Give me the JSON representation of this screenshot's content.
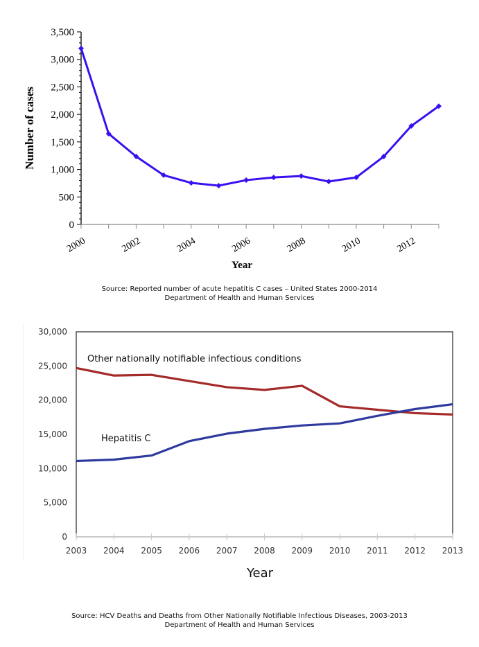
{
  "chart_data": [
    {
      "type": "line",
      "title": "",
      "xlabel": "Year",
      "ylabel": "Number of cases",
      "x": [
        2000,
        2001,
        2002,
        2003,
        2004,
        2005,
        2006,
        2007,
        2008,
        2009,
        2010,
        2011,
        2012,
        2013
      ],
      "xtick_labels": [
        "2000",
        "2002",
        "2004",
        "2006",
        "2008",
        "2010",
        "2012"
      ],
      "ytick_labels": [
        "0",
        "500",
        "1,000",
        "1,500",
        "2,000",
        "2,500",
        "3,000",
        "3,500"
      ],
      "ylim": [
        0,
        3500
      ],
      "xlim": [
        2000,
        2013
      ],
      "grid": false,
      "series": [
        {
          "name": "Acute hepatitis C cases",
          "color": "#3a10f0",
          "marker": "diamond",
          "values": [
            3200,
            1650,
            1235,
            895,
            755,
            705,
            805,
            855,
            880,
            780,
            855,
            1235,
            1790,
            2150
          ]
        }
      ],
      "caption": [
        "Source: Reported number of acute hepatitis C cases – United States 2000-2014",
        "Department of Health and Human Services"
      ]
    },
    {
      "type": "line",
      "title": "",
      "xlabel": "Year",
      "ylabel": "",
      "x": [
        2003,
        2004,
        2005,
        2006,
        2007,
        2008,
        2009,
        2010,
        2011,
        2012,
        2013
      ],
      "xtick_labels": [
        "2003",
        "2004",
        "2005",
        "2006",
        "2007",
        "2008",
        "2009",
        "2010",
        "2011",
        "2012",
        "2013"
      ],
      "ytick_labels": [
        "0",
        "5,000",
        "10,000",
        "15,000",
        "20,000",
        "25,000",
        "30,000"
      ],
      "ylim": [
        0,
        30000
      ],
      "xlim": [
        2003,
        2013
      ],
      "grid": false,
      "series": [
        {
          "name": "Other nationally notifiable infectious conditions",
          "color": "#a52a2a",
          "values": [
            24700,
            23600,
            23700,
            22800,
            21900,
            21500,
            22100,
            19100,
            18600,
            18100,
            17900
          ]
        },
        {
          "name": "Hepatitis C",
          "color": "#2e3a9e",
          "values": [
            11100,
            11300,
            11900,
            14000,
            15100,
            15800,
            16300,
            16600,
            17700,
            18700,
            19400
          ]
        }
      ],
      "annotations": [
        "Other nationally notifiable infectious conditions",
        "Hepatitis C"
      ],
      "caption": [
        "Source: HCV Deaths and Deaths from Other Nationally Notifiable Infectious Diseases, 2003-2013",
        "Department of Health and Human Services"
      ]
    }
  ]
}
